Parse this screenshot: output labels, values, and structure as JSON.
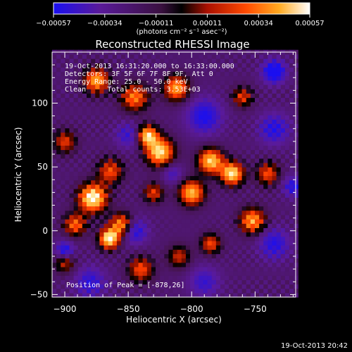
{
  "chart_data": {
    "type": "heatmap",
    "title": "Reconstructed RHESSI Image",
    "xlabel": "Heliocentric X (arcsec)",
    "ylabel": "Heliocentric Y (arcsec)",
    "xlim": [
      -910,
      -718
    ],
    "ylim": [
      -52,
      140
    ],
    "x_ticks": [
      -900,
      -850,
      -800,
      -750
    ],
    "y_ticks": [
      -50,
      0,
      50,
      100
    ],
    "x_tick_labels": [
      "−900",
      "−850",
      "−800",
      "−750"
    ],
    "y_tick_labels": [
      "−50",
      "0",
      "50",
      "100"
    ],
    "colorbar": {
      "tick_labels": [
        "−0.00057",
        "−0.00034",
        "−0.00011",
        "0.00011",
        "0.00034",
        "0.00057"
      ],
      "range": [
        -0.00057,
        0.00057
      ],
      "unit_text": "(photons cm⁻² s⁻¹ asec⁻²)",
      "colors": [
        "#1a0ff0",
        "#5a1a9a",
        "#6a2a8a",
        "#000000",
        "#aa1000",
        "#ff4a00",
        "#ffaa20",
        "#ffe8a0",
        "#ffffff"
      ]
    },
    "annotations": [
      "19-Oct-2013 16:31:20.000 to 16:33:00.000",
      "Detectors: 3F 5F 6F 7F 8F 9F, Att 0",
      "Energy Range: 25.0 - 50.0 keV",
      "Clean     Total counts: 3.53E+03",
      "Position of Peak = [-878,26]"
    ],
    "peak": {
      "x": -878,
      "y": 26
    },
    "hot_spots": [
      {
        "x": -878,
        "y": 26,
        "amp": 1.0,
        "r": 11
      },
      {
        "x": -864,
        "y": 47,
        "amp": 0.55,
        "r": 10
      },
      {
        "x": -865,
        "y": -6,
        "amp": 0.95,
        "r": 8
      },
      {
        "x": -875,
        "y": 118,
        "amp": 0.75,
        "r": 10
      },
      {
        "x": -845,
        "y": 105,
        "amp": 0.65,
        "r": 11
      },
      {
        "x": -812,
        "y": 112,
        "amp": 0.75,
        "r": 10
      },
      {
        "x": -835,
        "y": 75,
        "amp": 0.85,
        "r": 8
      },
      {
        "x": -825,
        "y": 62,
        "amp": 0.9,
        "r": 11
      },
      {
        "x": -785,
        "y": 55,
        "amp": 0.85,
        "r": 10
      },
      {
        "x": -768,
        "y": 45,
        "amp": 0.9,
        "r": 9
      },
      {
        "x": -800,
        "y": 30,
        "amp": 0.8,
        "r": 10
      },
      {
        "x": -752,
        "y": 8,
        "amp": 0.75,
        "r": 10
      },
      {
        "x": -740,
        "y": 45,
        "amp": 0.55,
        "r": 9
      },
      {
        "x": -892,
        "y": 5,
        "amp": 0.6,
        "r": 9
      },
      {
        "x": -855,
        "y": 5,
        "amp": 0.75,
        "r": 9
      },
      {
        "x": -840,
        "y": -30,
        "amp": 0.55,
        "r": 10
      },
      {
        "x": -810,
        "y": -20,
        "amp": 0.45,
        "r": 9
      },
      {
        "x": -785,
        "y": -10,
        "amp": 0.55,
        "r": 8
      },
      {
        "x": -900,
        "y": 70,
        "amp": 0.5,
        "r": 9
      },
      {
        "x": -900,
        "y": -25,
        "amp": 0.45,
        "r": 8
      },
      {
        "x": -760,
        "y": 105,
        "amp": 0.5,
        "r": 8
      },
      {
        "x": -830,
        "y": 30,
        "amp": 0.5,
        "r": 8
      }
    ],
    "cold_spots": [
      {
        "x": -790,
        "y": 90,
        "amp": 0.55,
        "r": 14
      },
      {
        "x": -845,
        "y": 0,
        "amp": 0.55,
        "r": 10
      },
      {
        "x": -880,
        "y": -40,
        "amp": 0.45,
        "r": 12
      },
      {
        "x": -850,
        "y": 75,
        "amp": 0.4,
        "r": 10
      },
      {
        "x": -735,
        "y": -10,
        "amp": 0.5,
        "r": 12
      },
      {
        "x": -735,
        "y": 80,
        "amp": 0.5,
        "r": 12
      },
      {
        "x": -735,
        "y": 125,
        "amp": 0.75,
        "r": 9
      },
      {
        "x": -790,
        "y": -40,
        "amp": 0.4,
        "r": 12
      },
      {
        "x": -815,
        "y": 45,
        "amp": 0.35,
        "r": 8
      },
      {
        "x": -900,
        "y": -15,
        "amp": 0.6,
        "r": 7
      },
      {
        "x": -720,
        "y": 35,
        "amp": 0.5,
        "r": 8
      }
    ],
    "grid": false
  },
  "footer": {
    "timestamp": "19-Oct-2013 20:42"
  }
}
